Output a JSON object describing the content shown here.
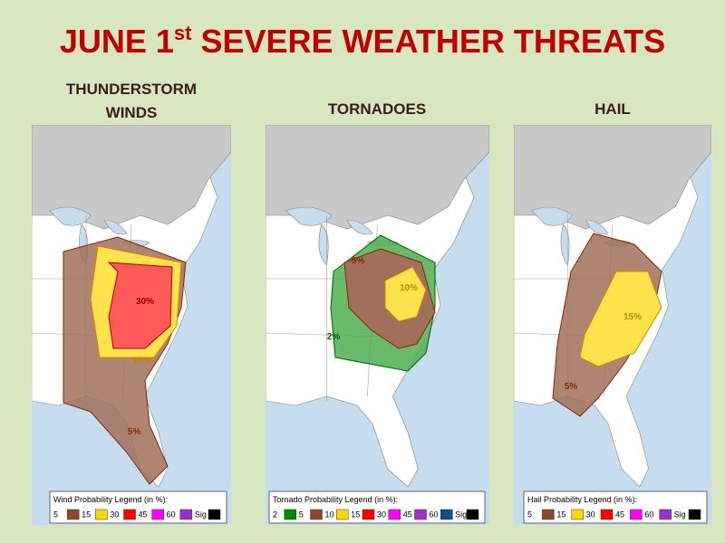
{
  "title": {
    "main": "JUNE 1",
    "sup": "st",
    "rest": " SEVERE WEATHER THREATS"
  },
  "panels": [
    {
      "heading": [
        "THUNDERSTORM",
        "WINDS"
      ],
      "legend_title": "Wind Probability Legend (in %):",
      "legend": [
        {
          "label": "5",
          "color": "#8b4a2b"
        },
        {
          "label": "15",
          "color": "#ffd700"
        },
        {
          "label": "30",
          "color": "#ff0000"
        },
        {
          "label": "45",
          "color": "#ff00ff"
        },
        {
          "label": "60",
          "color": "#9932cc"
        },
        {
          "label": "Sig",
          "color": "#000000"
        }
      ],
      "map_labels": [
        {
          "text": "30%",
          "color": "#8b0000"
        },
        {
          "text": "15%",
          "color": "#b8860b"
        },
        {
          "text": "5%",
          "color": "#8b2500"
        }
      ]
    },
    {
      "heading": [
        "TORNADOES"
      ],
      "legend_title": "Tornado Probability Legend (in %):",
      "legend": [
        {
          "label": "2",
          "color": "#008b00"
        },
        {
          "label": "5",
          "color": "#8b4a2b"
        },
        {
          "label": "10",
          "color": "#ffd700"
        },
        {
          "label": "15",
          "color": "#ff0000"
        },
        {
          "label": "30",
          "color": "#ff00ff"
        },
        {
          "label": "45",
          "color": "#9932cc"
        },
        {
          "label": "60",
          "color": "#104e8b"
        },
        {
          "label": "Sig",
          "color": "#000000"
        }
      ],
      "map_labels": [
        {
          "text": "5%",
          "color": "#8b2500"
        },
        {
          "text": "10%",
          "color": "#b8860b"
        },
        {
          "text": "2%",
          "color": "#006400"
        }
      ]
    },
    {
      "heading": [
        "HAIL"
      ],
      "legend_title": "Hail Probability Legend (in %):",
      "legend": [
        {
          "label": "5",
          "color": "#8b4a2b"
        },
        {
          "label": "15",
          "color": "#ffd700"
        },
        {
          "label": "30",
          "color": "#ff0000"
        },
        {
          "label": "45",
          "color": "#ff00ff"
        },
        {
          "label": "60",
          "color": "#9932cc"
        },
        {
          "label": "Sig",
          "color": "#000000"
        }
      ],
      "map_labels": [
        {
          "text": "15%",
          "color": "#b8860b"
        },
        {
          "text": "5%",
          "color": "#8b2500"
        }
      ]
    }
  ]
}
